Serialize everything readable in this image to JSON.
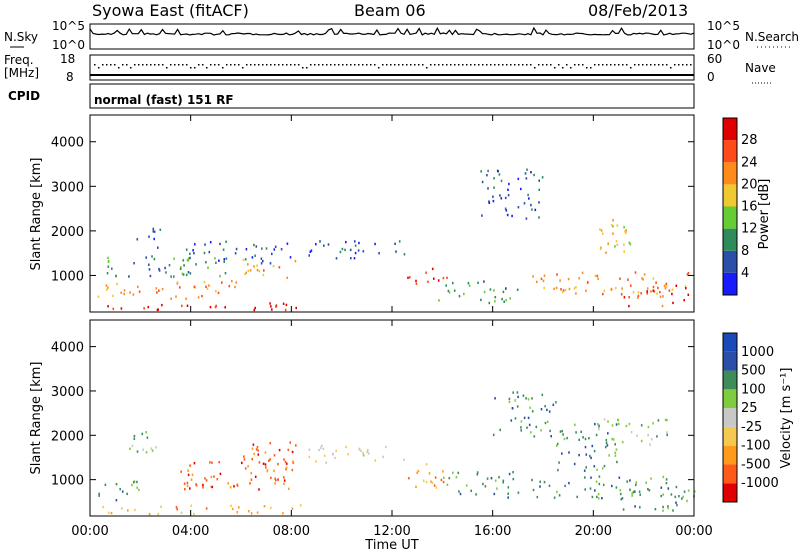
{
  "header": {
    "station": "Syowa East (fitACF)",
    "beam": "Beam 06",
    "date": "08/Feb/2013"
  },
  "noise_panel": {
    "left_label": "N.Sky",
    "right_label": "N.Search",
    "y_ticks": [
      "10^5",
      "10^0"
    ]
  },
  "freq_panel": {
    "left_label_1": "Freq.",
    "left_label_2": "[MHz]",
    "left_ticks": [
      "18",
      "8"
    ],
    "right_label": "Nave",
    "right_ticks": [
      "60",
      "0"
    ]
  },
  "cpid_panel": {
    "label": "CPID",
    "text": "normal (fast) 151 RF"
  },
  "x_axis": {
    "label": "Time UT",
    "ticks": [
      "00:00",
      "04:00",
      "08:00",
      "12:00",
      "16:00",
      "20:00",
      "00:00"
    ]
  },
  "colors": {
    "power": [
      "#1a1aff",
      "#2a4fa8",
      "#2e8c5a",
      "#66cc33",
      "#f0c830",
      "#ff8c1a",
      "#ff4a1a",
      "#e00000"
    ],
    "velocity": [
      "#e00000",
      "#ff5a1a",
      "#ff9a1a",
      "#f5c850",
      "#c8c8c8",
      "#7fcc40",
      "#3d8c5a",
      "#2a4fa8",
      "#1a4ab8"
    ]
  },
  "chart_data": [
    {
      "type": "heatmap",
      "name": "power",
      "ylabel": "Slant Range [km]",
      "y_ticks": [
        "1000",
        "2000",
        "3000",
        "4000"
      ],
      "ylim": [
        180,
        4600
      ],
      "xlim_hours": [
        0,
        24
      ],
      "colorbar_label": "Power [dB]",
      "colorbar_ticks": [
        "4",
        "8",
        "12",
        "16",
        "20",
        "24",
        "28"
      ],
      "scatter_regions": [
        {
          "t": [
            0.3,
            8.5
          ],
          "r": [
            250,
            400
          ],
          "level": 7
        },
        {
          "t": [
            6.0,
            8.2
          ],
          "r": [
            250,
            350
          ],
          "level": 7
        },
        {
          "t": [
            0.3,
            6.0
          ],
          "r": [
            500,
            900
          ],
          "level": 5
        },
        {
          "t": [
            6.0,
            8.2
          ],
          "r": [
            950,
            1400
          ],
          "level": 5
        },
        {
          "t": [
            0.5,
            5.5
          ],
          "r": [
            1000,
            1500
          ],
          "level": 2
        },
        {
          "t": [
            3.5,
            8.0
          ],
          "r": [
            1300,
            1800
          ],
          "level": 1
        },
        {
          "t": [
            1.8,
            2.8
          ],
          "r": [
            1600,
            2100
          ],
          "level": 1
        },
        {
          "t": [
            8.5,
            12.5
          ],
          "r": [
            1400,
            1800
          ],
          "level": 1
        },
        {
          "t": [
            12.6,
            14.2
          ],
          "r": [
            800,
            1200
          ],
          "level": 6
        },
        {
          "t": [
            13.8,
            17.0
          ],
          "r": [
            400,
            900
          ],
          "level": 2
        },
        {
          "t": [
            15.5,
            18.0
          ],
          "r": [
            2300,
            3400
          ],
          "level": 1
        },
        {
          "t": [
            17.5,
            24.0
          ],
          "r": [
            600,
            1100
          ],
          "level": 5
        },
        {
          "t": [
            20.0,
            21.5
          ],
          "r": [
            1400,
            2300
          ],
          "level": 4
        },
        {
          "t": [
            21.0,
            24.0
          ],
          "r": [
            300,
            800
          ],
          "level": 6
        }
      ]
    },
    {
      "type": "heatmap",
      "name": "velocity",
      "ylabel": "Slant Range [km]",
      "y_ticks": [
        "1000",
        "2000",
        "3000",
        "4000"
      ],
      "ylim": [
        180,
        4600
      ],
      "xlim_hours": [
        0,
        24
      ],
      "colorbar_label": "Velocity [m s⁻¹]",
      "colorbar_ticks": [
        "1000",
        "500",
        "100",
        "25",
        "-25",
        "-100",
        "-500",
        "-1000"
      ],
      "scatter_regions": [
        {
          "t": [
            0.3,
            8.5
          ],
          "r": [
            250,
            450
          ],
          "level": 2
        },
        {
          "t": [
            6.0,
            8.2
          ],
          "r": [
            1000,
            1900
          ],
          "level": 1
        },
        {
          "t": [
            3.5,
            8.0
          ],
          "r": [
            800,
            1500
          ],
          "level": 1
        },
        {
          "t": [
            0.3,
            2.0
          ],
          "r": [
            500,
            1000
          ],
          "level": 6
        },
        {
          "t": [
            1.5,
            3.0
          ],
          "r": [
            1600,
            2100
          ],
          "level": 5
        },
        {
          "t": [
            8.5,
            12.5
          ],
          "r": [
            1400,
            1800
          ],
          "level": 4
        },
        {
          "t": [
            12.6,
            14.2
          ],
          "r": [
            800,
            1400
          ],
          "level": 2
        },
        {
          "t": [
            14.0,
            17.0
          ],
          "r": [
            600,
            1200
          ],
          "level": 6
        },
        {
          "t": [
            16.0,
            18.5
          ],
          "r": [
            2000,
            3000
          ],
          "level": 6
        },
        {
          "t": [
            17.5,
            24.0
          ],
          "r": [
            600,
            1100
          ],
          "level": 6
        },
        {
          "t": [
            18.5,
            21.0
          ],
          "r": [
            1200,
            2300
          ],
          "level": 6
        },
        {
          "t": [
            21.0,
            24.0
          ],
          "r": [
            300,
            800
          ],
          "level": 6
        },
        {
          "t": [
            20.0,
            23.0
          ],
          "r": [
            1800,
            2400
          ],
          "level": 5
        }
      ]
    }
  ]
}
